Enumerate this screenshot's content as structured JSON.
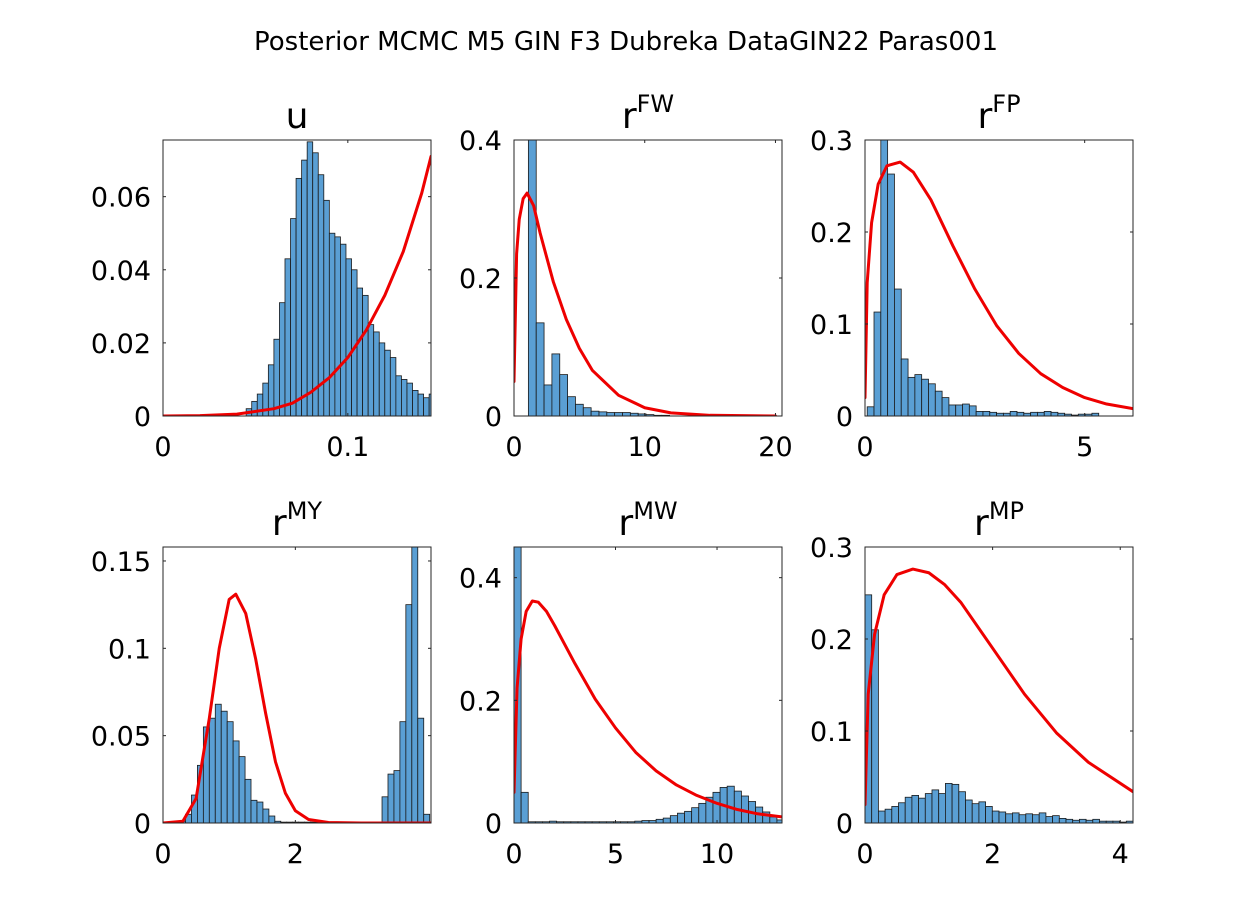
{
  "figure": {
    "title": "Posterior MCMC M5 GIN F3 Dubreka DataGIN22 Paras001"
  },
  "colors": {
    "bar_fill": "#5a9fd4",
    "bar_edge": "#1a1a1a",
    "prior_line": "#ee0000",
    "axes": "#262626"
  },
  "chart_data": [
    {
      "type": "bar",
      "title": "u",
      "title_base": "u",
      "title_sup": "",
      "xlim": [
        0,
        0.145
      ],
      "ylim": [
        0,
        0.0755
      ],
      "xticks": [
        0,
        0.1
      ],
      "xtick_labels": [
        "0",
        "0.1"
      ],
      "yticks": [
        0,
        0.02,
        0.04,
        0.06
      ],
      "ytick_labels": [
        "0",
        "0.02",
        "0.04",
        "0.06"
      ],
      "histogram": {
        "bin_start": 0.045,
        "bin_width": 0.003,
        "values": [
          0.002,
          0.004,
          0.006,
          0.009,
          0.014,
          0.021,
          0.031,
          0.043,
          0.054,
          0.065,
          0.07,
          0.075,
          0.072,
          0.066,
          0.059,
          0.05,
          0.049,
          0.047,
          0.043,
          0.04,
          0.035,
          0.033,
          0.025,
          0.023,
          0.02,
          0.018,
          0.016,
          0.011,
          0.01,
          0.009,
          0.007,
          0.006,
          0.005,
          0.006,
          0.005,
          0.004,
          0.003,
          0.002
        ]
      },
      "prior_curve": {
        "x": [
          0,
          0.02,
          0.04,
          0.06,
          0.07,
          0.08,
          0.09,
          0.1,
          0.11,
          0.12,
          0.13,
          0.14,
          0.145
        ],
        "y": [
          0,
          0.0001,
          0.0005,
          0.002,
          0.0035,
          0.0065,
          0.0105,
          0.016,
          0.0235,
          0.033,
          0.045,
          0.061,
          0.071
        ]
      }
    },
    {
      "type": "bar",
      "title": "r^FW",
      "title_base": "r",
      "title_sup": "FW",
      "xlim": [
        0,
        20.5
      ],
      "ylim": [
        0,
        0.4
      ],
      "xticks": [
        0,
        10,
        20
      ],
      "xtick_labels": [
        "0",
        "10",
        "20"
      ],
      "yticks": [
        0,
        0.2,
        0.4
      ],
      "ytick_labels": [
        "0",
        "0.2",
        "0.4"
      ],
      "histogram": {
        "bin_start": 0.5,
        "bin_width": 0.6,
        "values": [
          0.0,
          0.4,
          0.135,
          0.045,
          0.09,
          0.06,
          0.028,
          0.017,
          0.012,
          0.007,
          0.006,
          0.005,
          0.005,
          0.005,
          0.004,
          0.003,
          0.002,
          0.001,
          0.001
        ]
      },
      "prior_curve": {
        "x": [
          0,
          0.2,
          0.4,
          0.7,
          1,
          1.5,
          2,
          3,
          4,
          5,
          6,
          8,
          10,
          12,
          15,
          20
        ],
        "y": [
          0.05,
          0.235,
          0.285,
          0.315,
          0.323,
          0.305,
          0.265,
          0.195,
          0.14,
          0.098,
          0.066,
          0.03,
          0.012,
          0.0045,
          0.001,
          0
        ]
      }
    },
    {
      "type": "bar",
      "title": "r^FP",
      "title_base": "r",
      "title_sup": "FP",
      "xlim": [
        0,
        6.1
      ],
      "ylim": [
        0,
        0.3
      ],
      "xticks": [
        0,
        5
      ],
      "xtick_labels": [
        "0",
        "5"
      ],
      "yticks": [
        0,
        0.1,
        0.2,
        0.3
      ],
      "ytick_labels": [
        "0",
        "0.1",
        "0.2",
        "0.3"
      ],
      "histogram": {
        "bin_start": 0.05,
        "bin_width": 0.155,
        "values": [
          0.01,
          0.113,
          0.3,
          0.263,
          0.138,
          0.062,
          0.042,
          0.045,
          0.04,
          0.035,
          0.027,
          0.02,
          0.012,
          0.012,
          0.013,
          0.011,
          0.005,
          0.005,
          0.004,
          0.003,
          0.003,
          0.005,
          0.004,
          0.003,
          0.004,
          0.004,
          0.005,
          0.004,
          0.003,
          0.002,
          0.001,
          0.002,
          0.002,
          0.003
        ]
      },
      "prior_curve": {
        "x": [
          0,
          0.05,
          0.15,
          0.3,
          0.5,
          0.8,
          1.1,
          1.5,
          2,
          2.5,
          3,
          3.5,
          4,
          4.5,
          5,
          5.5,
          6.1
        ],
        "y": [
          0.02,
          0.145,
          0.21,
          0.252,
          0.272,
          0.276,
          0.265,
          0.235,
          0.185,
          0.138,
          0.098,
          0.068,
          0.046,
          0.031,
          0.02,
          0.013,
          0.008
        ]
      }
    },
    {
      "type": "bar",
      "title": "r^MY",
      "title_base": "r",
      "title_sup": "MY",
      "xlim": [
        0,
        4.05
      ],
      "ylim": [
        0,
        0.158
      ],
      "xticks": [
        0,
        2
      ],
      "xtick_labels": [
        "0",
        "2"
      ],
      "yticks": [
        0,
        0.05,
        0.1,
        0.15
      ],
      "ytick_labels": [
        "0",
        "0.05",
        "0.1",
        "0.15"
      ],
      "histogram": {
        "bin_start": 0.25,
        "bin_width": 0.09,
        "values": [
          0.001,
          0.005,
          0.016,
          0.033,
          0.055,
          0.06,
          0.068,
          0.064,
          0.058,
          0.047,
          0.038,
          0.025,
          0.013,
          0.012,
          0.008,
          0.004,
          0.001,
          0.0005,
          0.0005,
          0.0005,
          0.0005,
          0.0005,
          0.0005,
          0.0005,
          0.0005,
          0.0005,
          0.0005,
          0.0005,
          0.0005,
          0.0005,
          0.0005,
          0.0005,
          0.0005,
          0.0005,
          0.015,
          0.028,
          0.03,
          0.058,
          0.125,
          0.158,
          0.06,
          0.005
        ]
      },
      "prior_curve": {
        "x": [
          0,
          0.3,
          0.5,
          0.7,
          0.85,
          1.0,
          1.1,
          1.25,
          1.4,
          1.55,
          1.7,
          1.85,
          2.0,
          2.2,
          2.5,
          3.0,
          4.05
        ],
        "y": [
          0,
          0.001,
          0.014,
          0.06,
          0.1,
          0.128,
          0.131,
          0.12,
          0.094,
          0.063,
          0.035,
          0.017,
          0.007,
          0.002,
          0.0003,
          0,
          0
        ]
      }
    },
    {
      "type": "bar",
      "title": "r^MW",
      "title_base": "r",
      "title_sup": "MW",
      "xlim": [
        0,
        13.2
      ],
      "ylim": [
        0,
        0.45
      ],
      "xticks": [
        0,
        5,
        10
      ],
      "xtick_labels": [
        "0",
        "5",
        "10"
      ],
      "yticks": [
        0,
        0.2,
        0.4
      ],
      "ytick_labels": [
        "0",
        "0.2",
        "0.4"
      ],
      "histogram": {
        "bin_start": 0,
        "bin_width": 0.35,
        "values": [
          0.45,
          0.05,
          0.002,
          0.002,
          0.002,
          0.003,
          0.002,
          0.002,
          0.002,
          0.002,
          0.002,
          0.002,
          0.002,
          0.002,
          0.002,
          0.002,
          0.002,
          0.003,
          0.004,
          0.004,
          0.006,
          0.008,
          0.012,
          0.016,
          0.019,
          0.025,
          0.032,
          0.042,
          0.05,
          0.058,
          0.06,
          0.052,
          0.044,
          0.035,
          0.026,
          0.018,
          0.01,
          0.005
        ]
      },
      "prior_curve": {
        "x": [
          0,
          0.15,
          0.35,
          0.6,
          0.9,
          1.2,
          1.6,
          2,
          3,
          4,
          5,
          6,
          7,
          8,
          9,
          10,
          11,
          12,
          13.2
        ],
        "y": [
          0.05,
          0.22,
          0.3,
          0.345,
          0.362,
          0.36,
          0.345,
          0.322,
          0.26,
          0.202,
          0.155,
          0.115,
          0.085,
          0.062,
          0.045,
          0.032,
          0.022,
          0.015,
          0.01
        ]
      }
    },
    {
      "type": "bar",
      "title": "r^MP",
      "title_base": "r",
      "title_sup": "MP",
      "xlim": [
        0,
        4.2
      ],
      "ylim": [
        0,
        0.3
      ],
      "xticks": [
        0,
        2,
        4
      ],
      "xtick_labels": [
        "0",
        "2",
        "4"
      ],
      "yticks": [
        0,
        0.1,
        0.2,
        0.3
      ],
      "ytick_labels": [
        "0",
        "0.1",
        "0.2",
        "0.3"
      ],
      "histogram": {
        "bin_start": 0,
        "bin_width": 0.105,
        "values": [
          0.248,
          0.21,
          0.013,
          0.015,
          0.018,
          0.022,
          0.028,
          0.03,
          0.027,
          0.032,
          0.036,
          0.032,
          0.043,
          0.042,
          0.034,
          0.025,
          0.021,
          0.023,
          0.018,
          0.013,
          0.012,
          0.01,
          0.011,
          0.009,
          0.01,
          0.009,
          0.011,
          0.007,
          0.008,
          0.005,
          0.004,
          0.003,
          0.004,
          0.003,
          0.004,
          0.002,
          0.002,
          0.002,
          0.001,
          0.002
        ]
      },
      "prior_curve": {
        "x": [
          0,
          0.05,
          0.15,
          0.3,
          0.5,
          0.75,
          1,
          1.25,
          1.5,
          2,
          2.5,
          3,
          3.5,
          4.2
        ],
        "y": [
          0.02,
          0.14,
          0.205,
          0.248,
          0.27,
          0.276,
          0.272,
          0.259,
          0.24,
          0.19,
          0.14,
          0.098,
          0.066,
          0.034
        ]
      }
    }
  ]
}
